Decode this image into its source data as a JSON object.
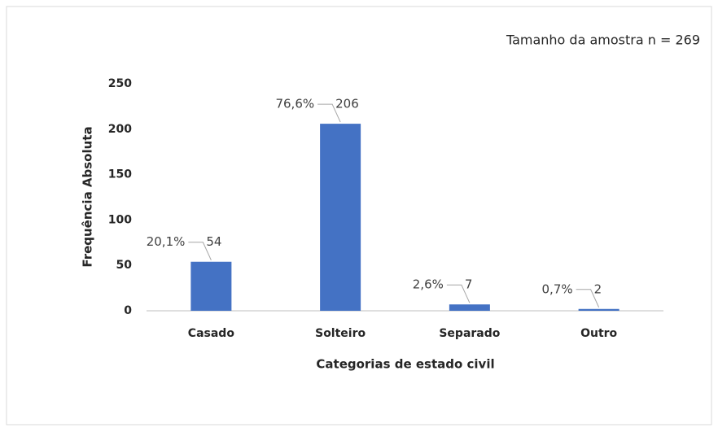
{
  "chart_data": {
    "type": "bar",
    "annotation": "Tamanho da amostra n = 269",
    "x_label": "Categorias de estado civil",
    "y_label": "Frequência Absoluta",
    "categories": [
      "Casado",
      "Solteiro",
      "Separado",
      "Outro"
    ],
    "values": [
      54,
      206,
      7,
      2
    ],
    "percent_labels": [
      "20,1%",
      "76,6%",
      "2,6%",
      "0,7%"
    ],
    "color": "#4472c4",
    "ylim": [
      0,
      250
    ],
    "yticks": [
      0,
      50,
      100,
      150,
      200,
      250
    ],
    "grid": false
  }
}
